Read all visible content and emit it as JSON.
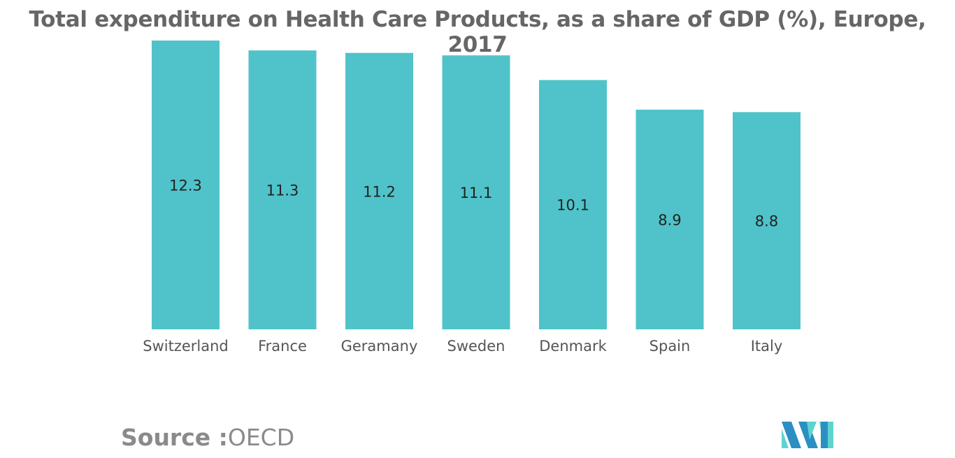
{
  "chart_data": {
    "type": "bar",
    "title": "Total expenditure on Health Care Products, as a share of GDP (%), Europe, 2017",
    "categories": [
      "Switzerland",
      "France",
      "Geramany",
      "Sweden",
      "Denmark",
      "Spain",
      "Italy"
    ],
    "values": [
      12.3,
      11.3,
      11.2,
      11.1,
      10.1,
      8.9,
      8.8
    ],
    "value_labels": [
      "12.3",
      "11.3",
      "11.2",
      "11.1",
      "10.1",
      "8.9",
      "8.8"
    ],
    "xlabel": "",
    "ylabel": "",
    "ylim": [
      0,
      11.7
    ],
    "grid": false,
    "legend": "none",
    "bar_color": "#4fc3c9"
  },
  "source": {
    "label": "Source :",
    "value": "OECD"
  },
  "logo": {
    "icon": "mordor-intelligence-logo-icon",
    "colors": [
      "#2c8fc1",
      "#5fd3cf"
    ]
  }
}
